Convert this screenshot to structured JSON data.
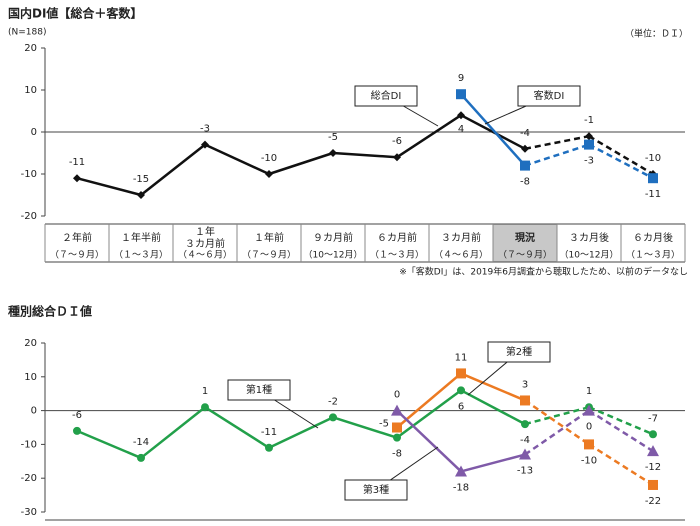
{
  "chart_data": [
    {
      "type": "line",
      "title": "国内DI値【総合＋客数】",
      "subtitle": "(N=188)",
      "unit": "（単位：ＤＩ）",
      "note": "※「客数DI」は、2019年6月調査から聴取したため、以前のデータなし",
      "categories": [
        "２年前",
        "１年半前",
        "１年\n３カ月前",
        "１年前",
        "９カ月前",
        "６カ月前",
        "３カ月前",
        "現況",
        "３カ月後",
        "６カ月後"
      ],
      "periods": [
        "（７～９月）",
        "（１～３月）",
        "（４～６月）",
        "（７～９月）",
        "（10～12月）",
        "（１～３月）",
        "（４～６月）",
        "（７～９月）",
        "（10～12月）",
        "（１～３月）"
      ],
      "current_index": 7,
      "series": [
        {
          "name": "総合DI",
          "color": "#111111",
          "marker": "diamond",
          "values": [
            -11,
            -15,
            -3,
            -10,
            -5,
            -6,
            4,
            -4,
            -1,
            -10
          ]
        },
        {
          "name": "客数DI",
          "color": "#1f6fbf",
          "marker": "square",
          "values": [
            null,
            null,
            null,
            null,
            null,
            null,
            9,
            -8,
            -3,
            -11
          ]
        }
      ],
      "ylim": [
        -20,
        20
      ],
      "yticks": [
        -20,
        -10,
        0,
        10,
        20
      ]
    },
    {
      "type": "line",
      "title": "種別総合ＤＩ値",
      "categories": [
        null,
        null,
        null,
        null,
        null,
        null,
        null,
        null,
        null,
        null
      ],
      "current_index": 7,
      "series": [
        {
          "name": "第1種",
          "color": "#22a04a",
          "marker": "circle",
          "values": [
            -6,
            -14,
            1,
            -11,
            -2,
            -8,
            6,
            -4,
            1,
            -7
          ]
        },
        {
          "name": "第2種",
          "color": "#ec7a22",
          "marker": "square",
          "values": [
            null,
            null,
            null,
            null,
            null,
            -5,
            11,
            3,
            -10,
            -22
          ]
        },
        {
          "name": "第3種",
          "color": "#7f5aa8",
          "marker": "triangle",
          "values": [
            null,
            null,
            null,
            null,
            null,
            0,
            -18,
            -13,
            0,
            -12
          ]
        }
      ],
      "ylim": [
        -30,
        20
      ],
      "yticks": [
        -30,
        -20,
        -10,
        0,
        10,
        20
      ]
    }
  ]
}
